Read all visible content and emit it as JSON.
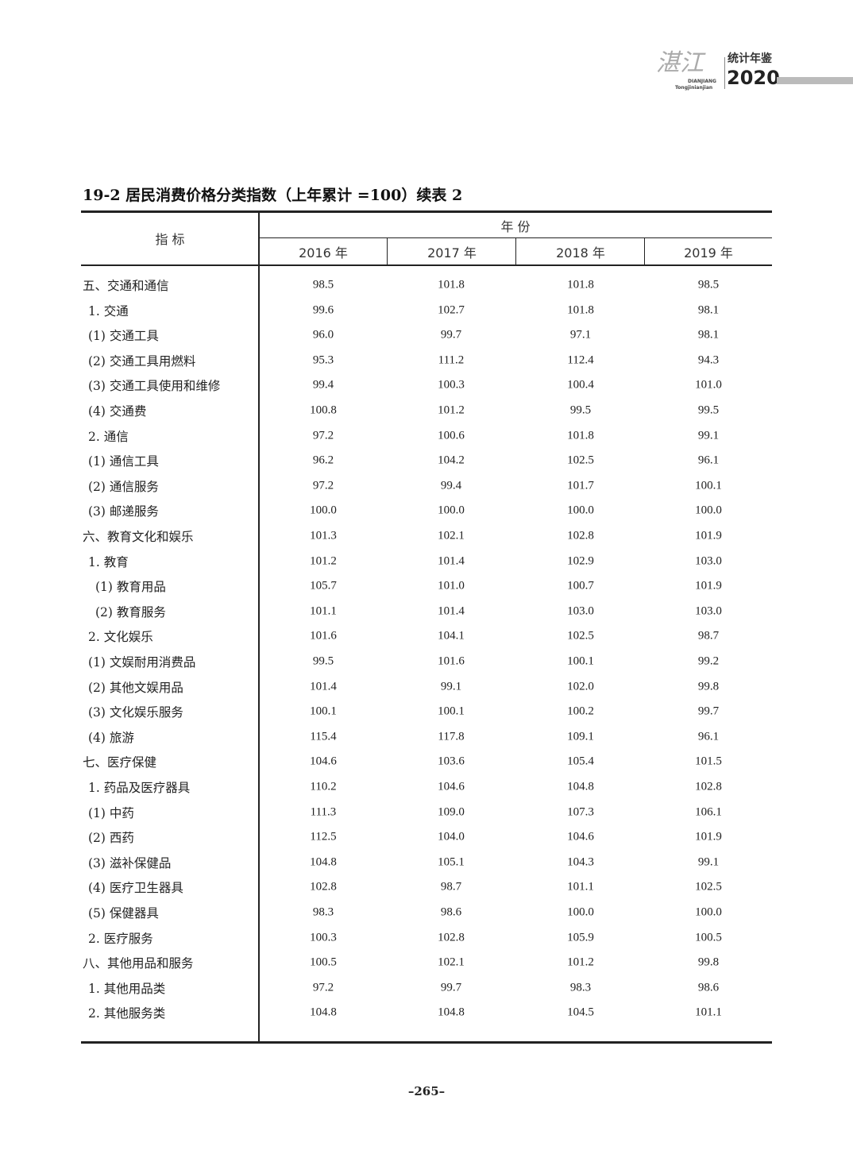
{
  "header": {
    "logo_text": "湛江",
    "logo_pinyin_1": "DIANJIANG",
    "logo_pinyin_2": "Tongjinianjian",
    "logo_title": "统计年鉴",
    "logo_year": "2020"
  },
  "table": {
    "title": "19-2  居民消费价格分类指数（上年累计 =100）续表 2",
    "indicator_header": "指  标",
    "year_group_header": "年  份",
    "columns": [
      "2016 年",
      "2017 年",
      "2018 年",
      "2019 年"
    ],
    "rows": [
      {
        "label": "五、交通和通信",
        "level": 0,
        "values": [
          "98.5",
          "101.8",
          "101.8",
          "98.5"
        ]
      },
      {
        "label": "1. 交通",
        "level": 1,
        "values": [
          "99.6",
          "102.7",
          "101.8",
          "98.1"
        ]
      },
      {
        "label": "(1) 交通工具",
        "level": 1,
        "values": [
          "96.0",
          "99.7",
          "97.1",
          "98.1"
        ]
      },
      {
        "label": "(2) 交通工具用燃料",
        "level": 1,
        "values": [
          "95.3",
          "111.2",
          "112.4",
          "94.3"
        ]
      },
      {
        "label": "(3) 交通工具使用和维修",
        "level": 1,
        "values": [
          "99.4",
          "100.3",
          "100.4",
          "101.0"
        ]
      },
      {
        "label": "(4) 交通费",
        "level": 1,
        "values": [
          "100.8",
          "101.2",
          "99.5",
          "99.5"
        ]
      },
      {
        "label": "2. 通信",
        "level": 1,
        "values": [
          "97.2",
          "100.6",
          "101.8",
          "99.1"
        ]
      },
      {
        "label": "(1) 通信工具",
        "level": 1,
        "values": [
          "96.2",
          "104.2",
          "102.5",
          "96.1"
        ]
      },
      {
        "label": "(2) 通信服务",
        "level": 1,
        "values": [
          "97.2",
          "99.4",
          "101.7",
          "100.1"
        ]
      },
      {
        "label": "(3) 邮递服务",
        "level": 1,
        "values": [
          "100.0",
          "100.0",
          "100.0",
          "100.0"
        ]
      },
      {
        "label": "六、教育文化和娱乐",
        "level": 0,
        "values": [
          "101.3",
          "102.1",
          "102.8",
          "101.9"
        ]
      },
      {
        "label": "1. 教育",
        "level": 1,
        "values": [
          "101.2",
          "101.4",
          "102.9",
          "103.0"
        ]
      },
      {
        "label": "(1) 教育用品",
        "level": 2,
        "values": [
          "105.7",
          "101.0",
          "100.7",
          "101.9"
        ]
      },
      {
        "label": "(2) 教育服务",
        "level": 2,
        "values": [
          "101.1",
          "101.4",
          "103.0",
          "103.0"
        ]
      },
      {
        "label": "2. 文化娱乐",
        "level": 1,
        "values": [
          "101.6",
          "104.1",
          "102.5",
          "98.7"
        ]
      },
      {
        "label": "(1) 文娱耐用消费品",
        "level": 1,
        "values": [
          "99.5",
          "101.6",
          "100.1",
          "99.2"
        ]
      },
      {
        "label": "(2) 其他文娱用品",
        "level": 1,
        "values": [
          "101.4",
          "99.1",
          "102.0",
          "99.8"
        ]
      },
      {
        "label": "(3) 文化娱乐服务",
        "level": 1,
        "values": [
          "100.1",
          "100.1",
          "100.2",
          "99.7"
        ]
      },
      {
        "label": "(4) 旅游",
        "level": 1,
        "values": [
          "115.4",
          "117.8",
          "109.1",
          "96.1"
        ]
      },
      {
        "label": "七、医疗保健",
        "level": 0,
        "values": [
          "104.6",
          "103.6",
          "105.4",
          "101.5"
        ]
      },
      {
        "label": "1. 药品及医疗器具",
        "level": 1,
        "values": [
          "110.2",
          "104.6",
          "104.8",
          "102.8"
        ]
      },
      {
        "label": "(1) 中药",
        "level": 1,
        "values": [
          "111.3",
          "109.0",
          "107.3",
          "106.1"
        ]
      },
      {
        "label": "(2) 西药",
        "level": 1,
        "values": [
          "112.5",
          "104.0",
          "104.6",
          "101.9"
        ]
      },
      {
        "label": "(3) 滋补保健品",
        "level": 1,
        "values": [
          "104.8",
          "105.1",
          "104.3",
          "99.1"
        ]
      },
      {
        "label": "(4) 医疗卫生器具",
        "level": 1,
        "values": [
          "102.8",
          "98.7",
          "101.1",
          "102.5"
        ]
      },
      {
        "label": "(5) 保健器具",
        "level": 1,
        "values": [
          "98.3",
          "98.6",
          "100.0",
          "100.0"
        ]
      },
      {
        "label": "2. 医疗服务",
        "level": 1,
        "values": [
          "100.3",
          "102.8",
          "105.9",
          "100.5"
        ]
      },
      {
        "label": "八、其他用品和服务",
        "level": 0,
        "values": [
          "100.5",
          "102.1",
          "101.2",
          "99.8"
        ]
      },
      {
        "label": "1. 其他用品类",
        "level": 1,
        "values": [
          "97.2",
          "99.7",
          "98.3",
          "98.6"
        ]
      },
      {
        "label": "2. 其他服务类",
        "level": 1,
        "values": [
          "104.8",
          "104.8",
          "104.5",
          "101.1"
        ]
      }
    ]
  },
  "footer": {
    "page_number": "–265–"
  }
}
